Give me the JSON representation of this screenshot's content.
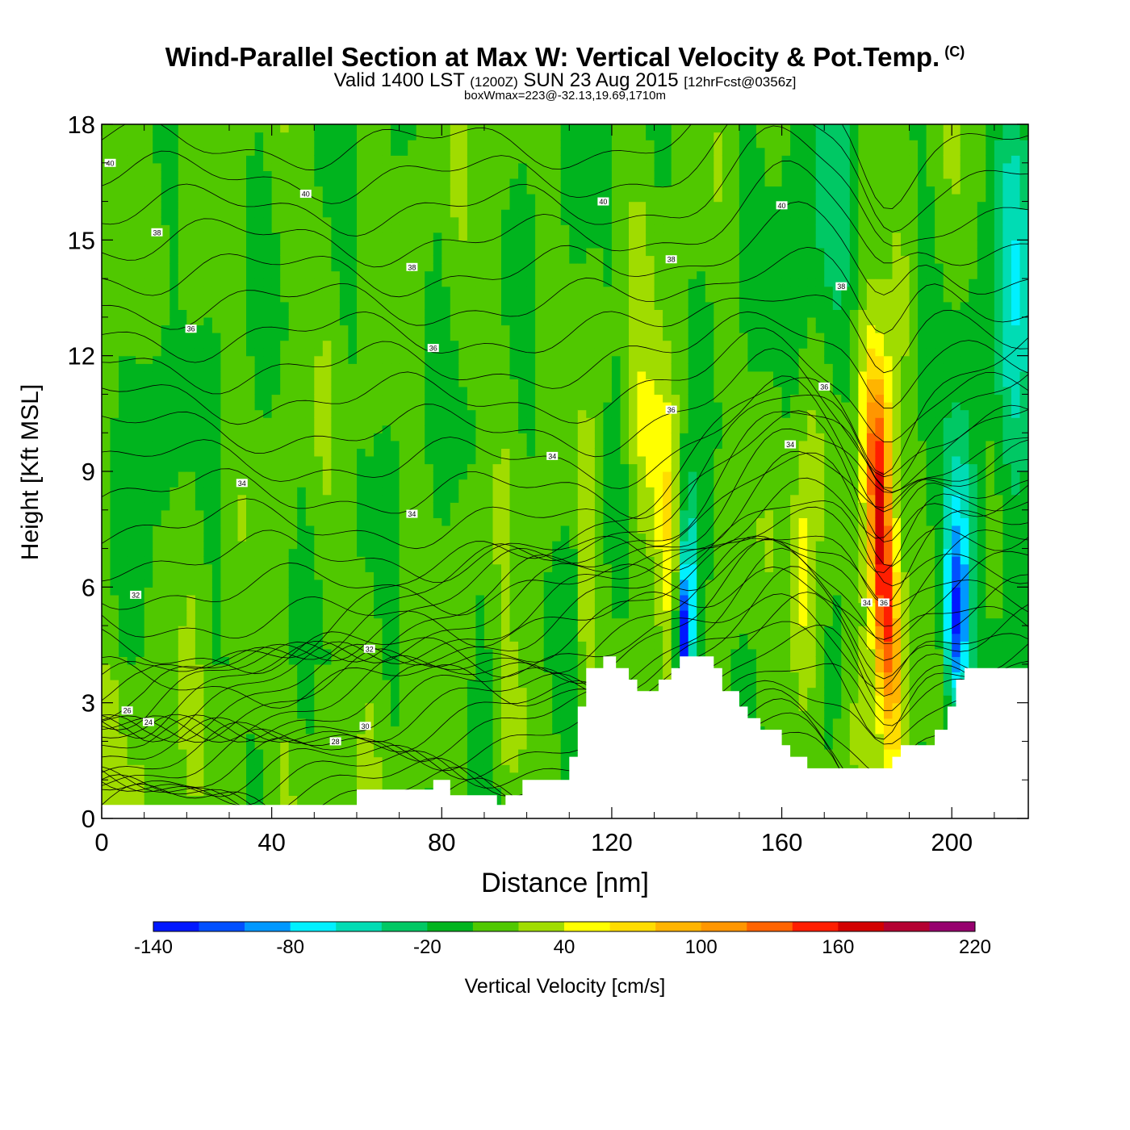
{
  "title": "Wind-Parallel Section at Max W: Vertical Velocity & Pot.Temp.",
  "copyright": "(C)",
  "subtitle": {
    "valid": "Valid 1400 LST",
    "utc": "(1200Z)",
    "date": "SUN 23 Aug 2015",
    "fcst": "[12hrFcst@0356z]"
  },
  "box_line": "boxWmax=223@-32.13,19.69,1710m",
  "chart_data": {
    "type": "heatmap",
    "title": "Wind-Parallel Section at Max W: Vertical Velocity & Pot.Temp.",
    "xlabel": "Distance [nm]",
    "ylabel": "Height [Kft MSL]",
    "xlim": [
      0,
      218
    ],
    "ylim": [
      0,
      18
    ],
    "x_ticks": [
      "0",
      "40",
      "80",
      "120",
      "160",
      "200"
    ],
    "y_ticks": [
      "0",
      "3",
      "6",
      "9",
      "12",
      "15",
      "18"
    ],
    "colorbar": {
      "label": "Vertical Velocity [cm/s]",
      "ticks": [
        "-140",
        "-80",
        "-20",
        "40",
        "100",
        "160",
        "220"
      ],
      "levels": [
        -140,
        -120,
        -100,
        -80,
        -60,
        -40,
        -20,
        0,
        20,
        40,
        60,
        80,
        100,
        120,
        140,
        160,
        180,
        200,
        220
      ],
      "colors": [
        "#0018ff",
        "#0050ff",
        "#0098ff",
        "#00f0ff",
        "#00dcb4",
        "#00c864",
        "#00b41e",
        "#50c800",
        "#a0dc00",
        "#ffff00",
        "#ffdc00",
        "#ffb400",
        "#ff9600",
        "#ff6400",
        "#ff1e00",
        "#d20000",
        "#b40032",
        "#96006e"
      ]
    },
    "terrain": [
      [
        0,
        0.35
      ],
      [
        60,
        0.35
      ],
      [
        60,
        0.75
      ],
      [
        78,
        0.75
      ],
      [
        78,
        1.0
      ],
      [
        82,
        1.0
      ],
      [
        82,
        0.6
      ],
      [
        93,
        0.6
      ],
      [
        93,
        0.35
      ],
      [
        95,
        0.35
      ],
      [
        95,
        0.6
      ],
      [
        99,
        0.6
      ],
      [
        99,
        1.0
      ],
      [
        110,
        1.0
      ],
      [
        110,
        1.6
      ],
      [
        112,
        1.6
      ],
      [
        112,
        2.9
      ],
      [
        114,
        2.9
      ],
      [
        114,
        3.9
      ],
      [
        118,
        3.9
      ],
      [
        118,
        4.2
      ],
      [
        121,
        4.2
      ],
      [
        121,
        3.9
      ],
      [
        124,
        3.9
      ],
      [
        124,
        3.6
      ],
      [
        126,
        3.6
      ],
      [
        126,
        3.3
      ],
      [
        131,
        3.3
      ],
      [
        131,
        3.6
      ],
      [
        134,
        3.6
      ],
      [
        134,
        3.9
      ],
      [
        136,
        3.9
      ],
      [
        136,
        4.2
      ],
      [
        144,
        4.2
      ],
      [
        144,
        3.9
      ],
      [
        146,
        3.9
      ],
      [
        146,
        3.3
      ],
      [
        150,
        3.3
      ],
      [
        150,
        2.9
      ],
      [
        152,
        2.9
      ],
      [
        152,
        2.6
      ],
      [
        155,
        2.6
      ],
      [
        155,
        2.3
      ],
      [
        160,
        2.3
      ],
      [
        160,
        1.9
      ],
      [
        162,
        1.9
      ],
      [
        162,
        1.6
      ],
      [
        166,
        1.6
      ],
      [
        166,
        1.3
      ],
      [
        186,
        1.3
      ],
      [
        186,
        1.6
      ],
      [
        188,
        1.6
      ],
      [
        188,
        1.9
      ],
      [
        196,
        1.9
      ],
      [
        196,
        2.3
      ],
      [
        199,
        2.3
      ],
      [
        199,
        2.9
      ],
      [
        201,
        2.9
      ],
      [
        201,
        3.6
      ],
      [
        203,
        3.6
      ],
      [
        203,
        3.9
      ],
      [
        218,
        3.9
      ]
    ],
    "theta_labels": [
      {
        "x": 2,
        "y": 17.0,
        "text": "40"
      },
      {
        "x": 48,
        "y": 16.2,
        "text": "40"
      },
      {
        "x": 118,
        "y": 16.0,
        "text": "40"
      },
      {
        "x": 160,
        "y": 15.9,
        "text": "40"
      },
      {
        "x": 13,
        "y": 15.2,
        "text": "38"
      },
      {
        "x": 73,
        "y": 14.3,
        "text": "38"
      },
      {
        "x": 134,
        "y": 14.5,
        "text": "38"
      },
      {
        "x": 174,
        "y": 13.8,
        "text": "38"
      },
      {
        "x": 21,
        "y": 12.7,
        "text": "36"
      },
      {
        "x": 78,
        "y": 12.2,
        "text": "36"
      },
      {
        "x": 134,
        "y": 10.6,
        "text": "36"
      },
      {
        "x": 170,
        "y": 11.2,
        "text": "36"
      },
      {
        "x": 33,
        "y": 8.7,
        "text": "34"
      },
      {
        "x": 73,
        "y": 7.9,
        "text": "34"
      },
      {
        "x": 106,
        "y": 9.4,
        "text": "34"
      },
      {
        "x": 162,
        "y": 9.7,
        "text": "34"
      },
      {
        "x": 180,
        "y": 5.6,
        "text": "34"
      },
      {
        "x": 184,
        "y": 5.6,
        "text": "36"
      },
      {
        "x": 8,
        "y": 5.8,
        "text": "32"
      },
      {
        "x": 63,
        "y": 4.4,
        "text": "32"
      },
      {
        "x": 62,
        "y": 2.4,
        "text": "30"
      },
      {
        "x": 55,
        "y": 2.0,
        "text": "28"
      },
      {
        "x": 6,
        "y": 2.8,
        "text": "26"
      },
      {
        "x": 11,
        "y": 2.5,
        "text": "24"
      }
    ]
  }
}
